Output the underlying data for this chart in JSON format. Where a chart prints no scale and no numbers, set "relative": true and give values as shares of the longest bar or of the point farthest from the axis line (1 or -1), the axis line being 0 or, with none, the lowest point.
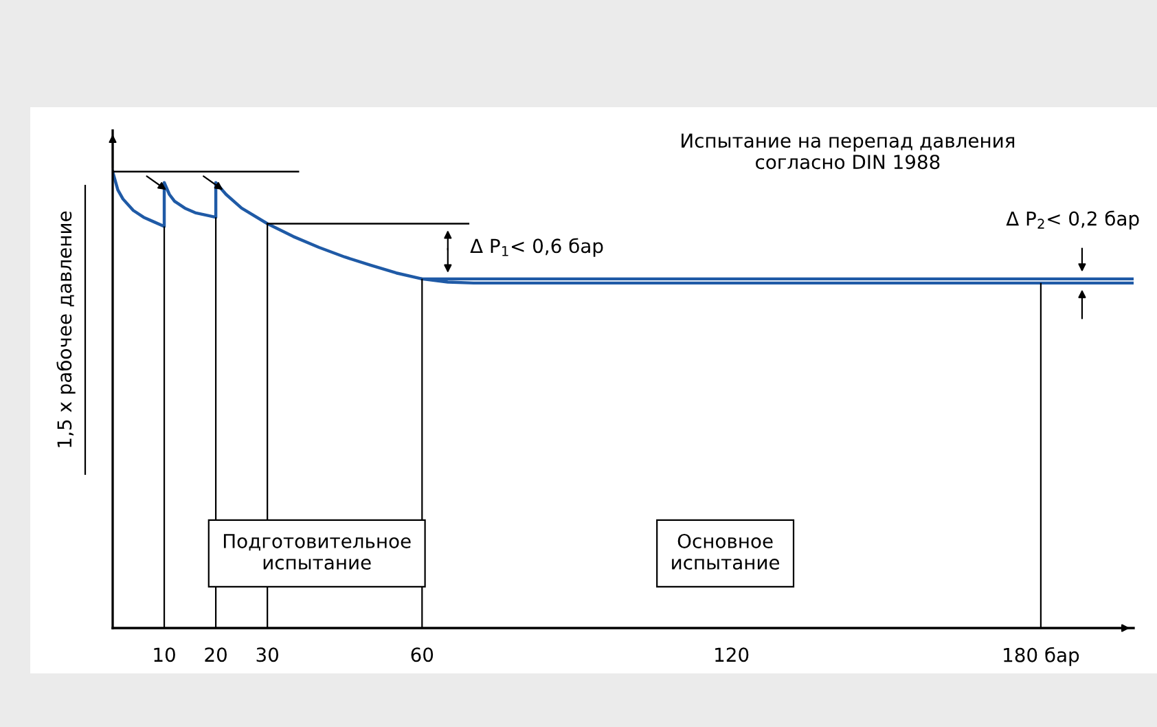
{
  "chart_data": {
    "type": "line",
    "relative": true,
    "ylabel": "1,5 x рабочее давление",
    "xlim": [
      0,
      198
    ],
    "xticks": [
      10,
      20,
      30,
      60,
      120,
      {
        "value": 180,
        "label": "180 бар"
      }
    ],
    "grid": false,
    "marker": "none",
    "line_style": "solid",
    "series": [
      {
        "color": "#1f5aa6",
        "x": [
          0,
          1,
          2,
          4,
          6,
          8,
          10,
          10,
          11,
          12,
          14,
          16,
          18,
          20,
          20,
          22,
          25,
          30,
          35,
          40,
          45,
          50,
          55,
          60,
          65,
          70,
          100,
          150,
          198
        ],
        "values": [
          1.0,
          0.96,
          0.94,
          0.915,
          0.9,
          0.89,
          0.88,
          0.976,
          0.95,
          0.935,
          0.92,
          0.91,
          0.905,
          0.9,
          0.976,
          0.95,
          0.92,
          0.886,
          0.858,
          0.834,
          0.813,
          0.795,
          0.778,
          0.765,
          0.758,
          0.756,
          0.756,
          0.756,
          0.756
        ]
      },
      {
        "color": "#1f5aa6",
        "x": [
          60,
          198
        ],
        "values": [
          0.765,
          0.765
        ]
      },
      {
        "color": "#000000",
        "x": [
          0,
          36
        ],
        "values": [
          1.0,
          1.0
        ]
      },
      {
        "color": "#000000",
        "x": [
          30,
          69
        ],
        "values": [
          0.886,
          0.886
        ]
      }
    ],
    "ref_lines": [
      {
        "axis": "x",
        "value": 10
      },
      {
        "axis": "x",
        "value": 20
      },
      {
        "axis": "x",
        "value": 30
      },
      {
        "axis": "x",
        "value": 60
      },
      {
        "axis": "x",
        "value": 180
      }
    ],
    "annotations": [
      "Испытание на перепад давления\nсогласно DIN 1988",
      "Δ P$_{1}$< 0,6 бар",
      "Δ P$_{2}$< 0,2 бар",
      "Подготовительное\nиспытание",
      "Основное\nиспытание"
    ]
  }
}
